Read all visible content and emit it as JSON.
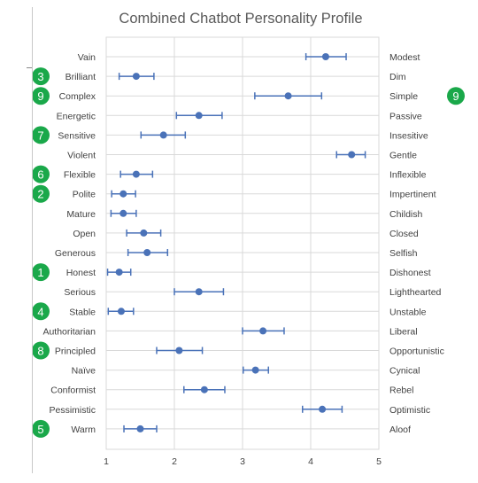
{
  "chart_data": {
    "type": "scatter",
    "title": "Combined Chatbot Personality Profile",
    "xlim": [
      1,
      5
    ],
    "x_ticks": [
      "1",
      "2",
      "3",
      "4",
      "5"
    ],
    "grid": true,
    "colors": {
      "marker": "#4a72b8",
      "badge": "#1aa84a",
      "grid": "#d9d9d9",
      "text": "#404040",
      "title": "#595959"
    },
    "rows": [
      {
        "left": "Vain",
        "right": "Modest",
        "mean": 4.22,
        "low": 3.93,
        "high": 4.52,
        "badge": ""
      },
      {
        "left": "Brilliant",
        "right": "Dim",
        "mean": 1.44,
        "low": 1.19,
        "high": 1.7,
        "badge": "3"
      },
      {
        "left": "Complex",
        "right": "Simple",
        "mean": 3.67,
        "low": 3.18,
        "high": 4.16,
        "badge": "9",
        "badge_right": "9"
      },
      {
        "left": "Energetic",
        "right": "Passive",
        "mean": 2.36,
        "low": 2.03,
        "high": 2.7,
        "badge": ""
      },
      {
        "left": "Sensitive",
        "right": "Insesitive",
        "mean": 1.84,
        "low": 1.51,
        "high": 2.16,
        "badge": "7"
      },
      {
        "left": "Violent",
        "right": "Gentle",
        "mean": 4.6,
        "low": 4.38,
        "high": 4.8,
        "badge": ""
      },
      {
        "left": "Flexible",
        "right": "Inflexible",
        "mean": 1.44,
        "low": 1.21,
        "high": 1.68,
        "badge": "6"
      },
      {
        "left": "Polite",
        "right": "Impertinent",
        "mean": 1.25,
        "low": 1.08,
        "high": 1.43,
        "badge": "2"
      },
      {
        "left": "Mature",
        "right": "Childish",
        "mean": 1.25,
        "low": 1.07,
        "high": 1.44,
        "badge": ""
      },
      {
        "left": "Open",
        "right": "Closed",
        "mean": 1.55,
        "low": 1.3,
        "high": 1.8,
        "badge": ""
      },
      {
        "left": "Generous",
        "right": "Selfish",
        "mean": 1.6,
        "low": 1.32,
        "high": 1.9,
        "badge": ""
      },
      {
        "left": "Honest",
        "right": "Dishonest",
        "mean": 1.19,
        "low": 1.02,
        "high": 1.36,
        "badge": "1"
      },
      {
        "left": "Serious",
        "right": "Lighthearted",
        "mean": 2.36,
        "low": 2.0,
        "high": 2.72,
        "badge": ""
      },
      {
        "left": "Stable",
        "right": "Unstable",
        "mean": 1.22,
        "low": 1.03,
        "high": 1.4,
        "badge": "4"
      },
      {
        "left": "Authoritarian",
        "right": "Liberal",
        "mean": 3.3,
        "low": 3.0,
        "high": 3.61,
        "badge": ""
      },
      {
        "left": "Principled",
        "right": "Opportunistic",
        "mean": 2.07,
        "low": 1.74,
        "high": 2.41,
        "badge": "8"
      },
      {
        "left": "Naïve",
        "right": "Cynical",
        "mean": 3.19,
        "low": 3.01,
        "high": 3.38,
        "badge": ""
      },
      {
        "left": "Conformist",
        "right": "Rebel",
        "mean": 2.44,
        "low": 2.14,
        "high": 2.74,
        "badge": ""
      },
      {
        "left": "Pessimistic",
        "right": "Optimistic",
        "mean": 4.17,
        "low": 3.88,
        "high": 4.46,
        "badge": ""
      },
      {
        "left": "Warm",
        "right": "Aloof",
        "mean": 1.5,
        "low": 1.26,
        "high": 1.74,
        "badge": "5"
      }
    ]
  }
}
